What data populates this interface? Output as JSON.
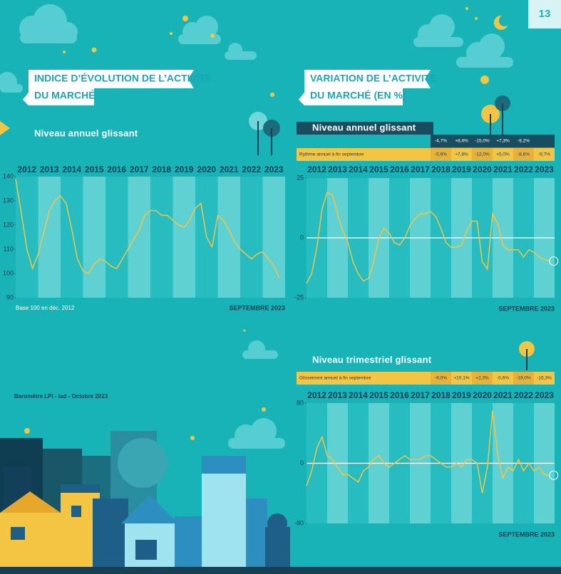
{
  "page": {
    "number": "13",
    "source": "Baromètre LPI - iad - Octobre 2023"
  },
  "sections": [
    {
      "title_lines": [
        "INDICE D’ÉVOLUTION DE L’ACTIVITÉ",
        "DU MARCHÉ"
      ]
    },
    {
      "title_lines": [
        "VARIATION DE L’ACTIVITÉ",
        "DU MARCHÉ (EN %)"
      ]
    }
  ],
  "tables": [
    {
      "rows": [
        {
          "cells": [
            "-4,7%",
            "+8,4%",
            "-15,0%",
            "+7,3%",
            "-9,2%"
          ]
        },
        {
          "label": "Rythme annuel à fin septembre",
          "cells": [
            "-5,6%",
            "+7,8%",
            "-12,0%",
            "+5,0%",
            "-8,6%",
            "-9,7%"
          ]
        }
      ]
    },
    {
      "rows": [
        {
          "label": "Glissement annuel à fin septembre",
          "cells": [
            "-9,0%",
            "+10,1%",
            "+2,3%",
            "-5,6%",
            "-19,0%",
            "-16,3%"
          ]
        }
      ]
    }
  ],
  "chart_data": [
    {
      "type": "line",
      "subtitle": "Niveau annuel glissant",
      "note": "Base 100 en déc. 2012",
      "date_label": "SEPTEMBRE 2023",
      "x": [
        2012,
        2012.25,
        2012.5,
        2012.75,
        2013,
        2013.25,
        2013.5,
        2013.75,
        2014,
        2014.25,
        2014.5,
        2014.75,
        2015,
        2015.25,
        2015.5,
        2015.75,
        2016,
        2016.25,
        2016.5,
        2016.75,
        2017,
        2017.25,
        2017.5,
        2017.75,
        2018,
        2018.25,
        2018.5,
        2018.75,
        2019,
        2019.25,
        2019.5,
        2019.75,
        2020,
        2020.25,
        2020.5,
        2020.75,
        2021,
        2021.25,
        2021.5,
        2021.75,
        2022,
        2022.25,
        2022.5,
        2022.75,
        2023,
        2023.25,
        2023.5,
        2023.75
      ],
      "values": [
        139,
        125,
        110,
        102,
        108,
        117,
        126,
        130,
        132,
        129,
        118,
        106,
        101,
        100,
        104,
        106,
        105,
        103,
        102,
        106,
        110,
        114,
        118,
        124,
        126,
        126,
        124,
        124,
        122,
        120,
        119,
        122,
        127,
        129,
        115,
        111,
        124,
        122,
        118,
        113,
        110,
        108,
        106,
        108,
        109,
        106,
        103,
        98
      ],
      "xlim": [
        2012,
        2024
      ],
      "xticks": [
        2012,
        2013,
        2014,
        2015,
        2016,
        2017,
        2018,
        2019,
        2020,
        2021,
        2022,
        2023
      ],
      "ylim": [
        90,
        140
      ],
      "yticks": [
        90,
        100,
        110,
        120,
        130,
        140
      ],
      "color": "#f4c443",
      "end_marker": false
    },
    {
      "type": "line",
      "subtitle": "Niveau annuel glissant",
      "date_label": "SEPTEMBRE 2023",
      "x": [
        2012,
        2012.25,
        2012.5,
        2012.75,
        2013,
        2013.25,
        2013.5,
        2013.75,
        2014,
        2014.25,
        2014.5,
        2014.75,
        2015,
        2015.25,
        2015.5,
        2015.75,
        2016,
        2016.25,
        2016.5,
        2016.75,
        2017,
        2017.25,
        2017.5,
        2017.75,
        2018,
        2018.25,
        2018.5,
        2018.75,
        2019,
        2019.25,
        2019.5,
        2019.75,
        2020,
        2020.25,
        2020.5,
        2020.75,
        2021,
        2021.25,
        2021.5,
        2021.75,
        2022,
        2022.25,
        2022.5,
        2022.75,
        2023,
        2023.25,
        2023.5,
        2023.75
      ],
      "values": [
        -19,
        -15,
        -4,
        12,
        19,
        18,
        10,
        3,
        -2,
        -10,
        -15,
        -18,
        -17,
        -10,
        0,
        4,
        2,
        -2,
        -3,
        0,
        5,
        8,
        10,
        10,
        11,
        9,
        4,
        -2,
        -4,
        -4,
        -3,
        3,
        7,
        7,
        -10,
        -13,
        10,
        6,
        -3,
        -5,
        -5,
        -5,
        -8,
        -5,
        -6,
        -8,
        -9,
        -9.7
      ],
      "xlim": [
        2012,
        2024
      ],
      "xticks": [
        2012,
        2013,
        2014,
        2015,
        2016,
        2017,
        2018,
        2019,
        2020,
        2021,
        2022,
        2023
      ],
      "ylim": [
        -25,
        25
      ],
      "yticks": [
        -25,
        0,
        25
      ],
      "color": "#f4c443",
      "end_marker": true
    },
    {
      "type": "line",
      "subtitle": "Niveau trimestriel glissant",
      "date_label": "SEPTEMBRE 2023",
      "x": [
        2012,
        2012.25,
        2012.5,
        2012.75,
        2013,
        2013.25,
        2013.5,
        2013.75,
        2014,
        2014.25,
        2014.5,
        2014.75,
        2015,
        2015.25,
        2015.5,
        2015.75,
        2016,
        2016.25,
        2016.5,
        2016.75,
        2017,
        2017.25,
        2017.5,
        2017.75,
        2018,
        2018.25,
        2018.5,
        2018.75,
        2019,
        2019.25,
        2019.5,
        2019.75,
        2020,
        2020.25,
        2020.5,
        2020.75,
        2021,
        2021.25,
        2021.5,
        2021.75,
        2022,
        2022.25,
        2022.5,
        2022.75,
        2023,
        2023.25,
        2023.5,
        2023.75
      ],
      "values": [
        -30,
        -10,
        20,
        35,
        10,
        5,
        -5,
        -15,
        -15,
        -20,
        -25,
        -10,
        -5,
        5,
        10,
        0,
        -5,
        0,
        5,
        10,
        5,
        5,
        5,
        10,
        10,
        5,
        0,
        -5,
        -5,
        0,
        -5,
        5,
        5,
        0,
        -40,
        -5,
        70,
        10,
        -20,
        -5,
        -10,
        5,
        -10,
        0,
        -10,
        -5,
        -15,
        -16
      ],
      "xlim": [
        2012,
        2024
      ],
      "xticks": [
        2012,
        2013,
        2014,
        2015,
        2016,
        2017,
        2018,
        2019,
        2020,
        2021,
        2022,
        2023
      ],
      "ylim": [
        -80,
        80
      ],
      "yticks": [
        -80,
        0,
        80
      ],
      "color": "#f4c443",
      "end_marker": true
    }
  ]
}
